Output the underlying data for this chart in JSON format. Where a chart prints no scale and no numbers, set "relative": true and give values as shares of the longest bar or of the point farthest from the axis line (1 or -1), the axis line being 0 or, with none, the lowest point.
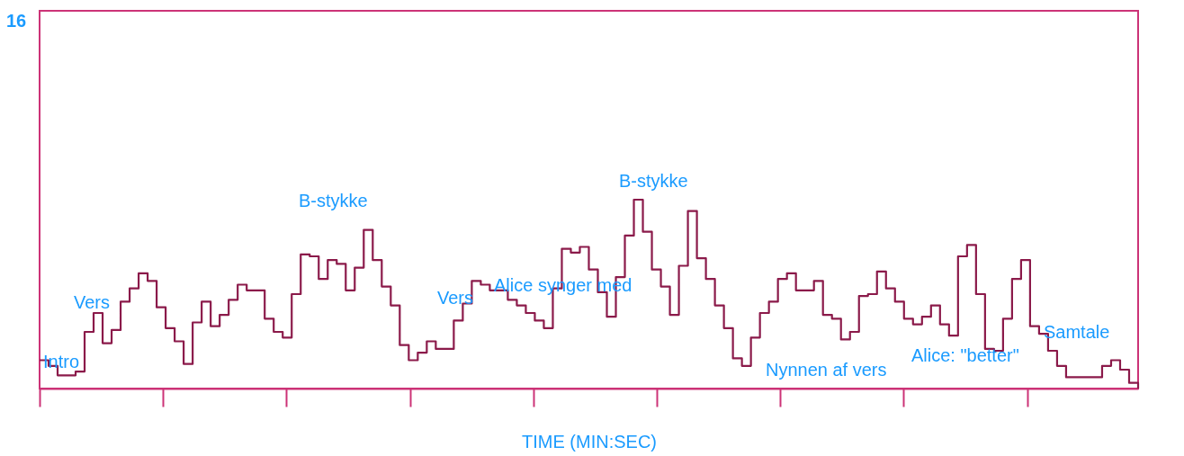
{
  "chart_data": {
    "type": "step",
    "relative": true,
    "xlabel": "TIME (MIN:SEC)",
    "tick_labels": false,
    "grid": false,
    "categories": [
      null,
      null,
      null,
      null,
      null,
      null,
      null,
      null,
      null,
      null,
      null,
      null,
      null,
      null,
      null,
      null,
      null,
      null,
      null,
      null,
      null,
      null,
      null,
      null,
      null,
      null,
      null,
      null,
      null,
      null,
      null,
      null,
      null,
      null,
      null,
      null,
      null,
      null,
      null,
      null,
      null,
      null,
      null,
      null,
      null,
      null,
      null,
      null,
      null,
      null,
      null,
      null,
      null,
      null,
      null,
      null,
      null,
      null,
      null,
      null,
      null,
      null,
      null,
      null,
      null,
      null,
      null,
      null,
      null,
      null,
      null,
      null,
      null,
      null,
      null,
      null,
      null,
      null,
      null,
      null,
      null,
      null,
      null,
      null,
      null,
      null,
      null,
      null,
      null,
      null,
      null,
      null,
      null,
      null,
      null,
      null,
      null,
      null,
      null,
      null,
      null,
      null,
      null,
      null,
      null,
      null,
      null,
      null,
      null,
      null,
      null,
      null,
      null,
      null,
      null,
      null,
      null,
      null,
      null,
      null,
      null,
      null,
      null
    ],
    "series": [
      {
        "color": "#8b1a4a",
        "values": [
          0.15,
          0.12,
          0.07,
          0.07,
          0.09,
          0.3,
          0.4,
          0.24,
          0.31,
          0.46,
          0.53,
          0.61,
          0.57,
          0.43,
          0.32,
          0.25,
          0.13,
          0.35,
          0.46,
          0.33,
          0.39,
          0.47,
          0.55,
          0.52,
          0.52,
          0.37,
          0.3,
          0.27,
          0.5,
          0.71,
          0.7,
          0.58,
          0.68,
          0.66,
          0.52,
          0.64,
          0.84,
          0.68,
          0.54,
          0.44,
          0.23,
          0.15,
          0.19,
          0.25,
          0.21,
          0.21,
          0.36,
          0.45,
          0.57,
          0.55,
          0.52,
          0.52,
          0.47,
          0.44,
          0.4,
          0.36,
          0.32,
          0.53,
          0.74,
          0.72,
          0.75,
          0.63,
          0.51,
          0.38,
          0.59,
          0.81,
          1.0,
          0.83,
          0.63,
          0.54,
          0.39,
          0.65,
          0.94,
          0.69,
          0.58,
          0.44,
          0.32,
          0.16,
          0.12,
          0.27,
          0.4,
          0.46,
          0.58,
          0.61,
          0.52,
          0.52,
          0.57,
          0.39,
          0.37,
          0.26,
          0.3,
          0.49,
          0.5,
          0.62,
          0.53,
          0.46,
          0.37,
          0.34,
          0.38,
          0.44,
          0.34,
          0.28,
          0.7,
          0.76,
          0.5,
          0.21,
          0.2,
          0.37,
          0.58,
          0.68,
          0.33,
          0.29,
          0.2,
          0.12,
          0.06,
          0.06,
          0.06,
          0.06,
          0.12,
          0.15,
          0.1,
          0.03,
          0
        ]
      }
    ],
    "annotations": [
      "16",
      "Intro",
      "Vers",
      "B-stykke",
      "Vers",
      "Alice synger med",
      "B-stykke",
      "Nynnen af vers",
      "Alice: \"better\"",
      "Samtale"
    ]
  }
}
